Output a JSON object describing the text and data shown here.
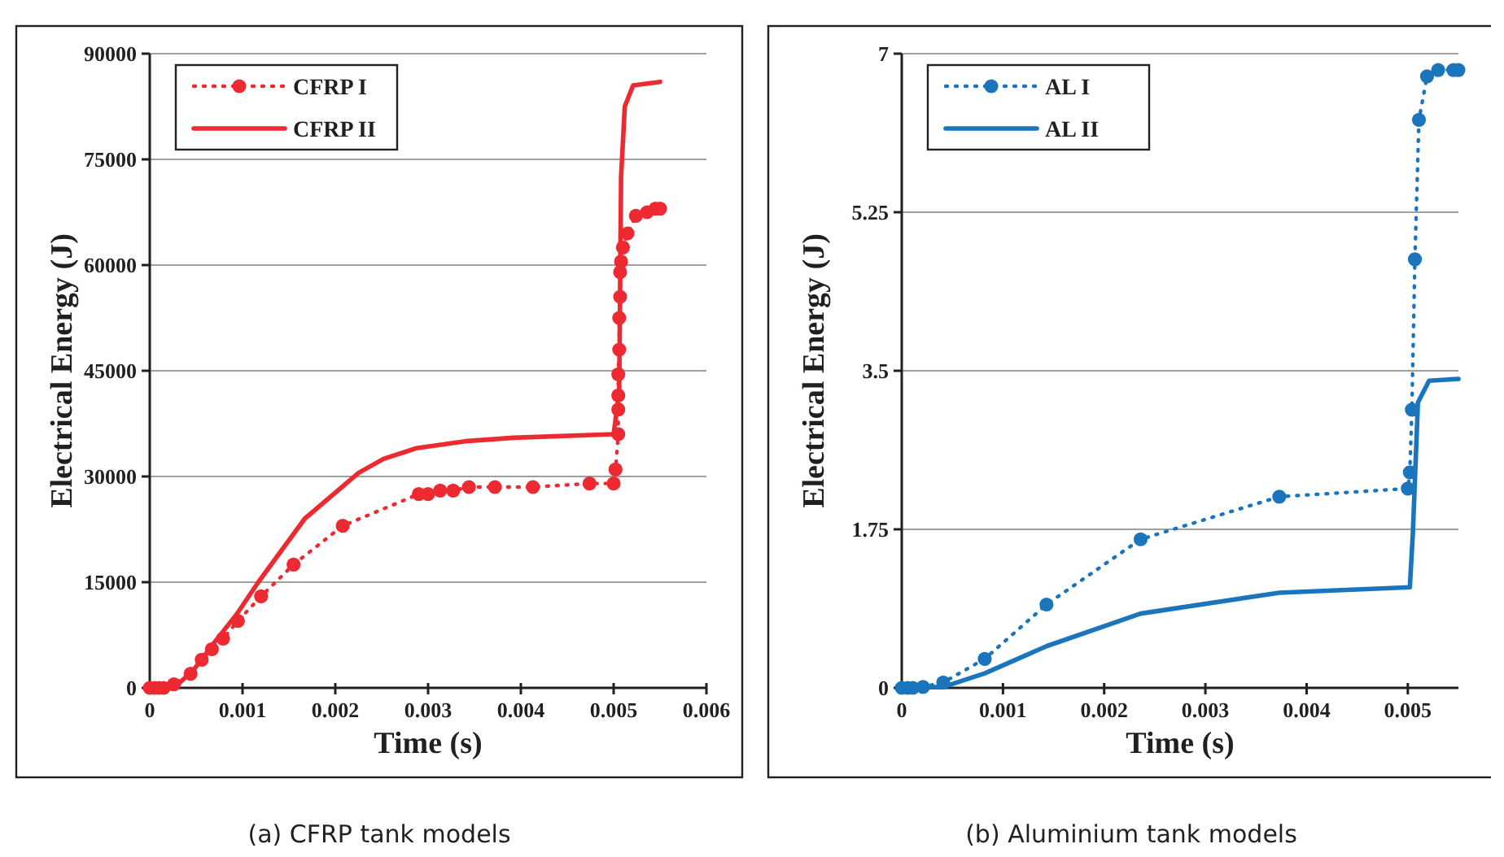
{
  "chart_data": [
    {
      "type": "line",
      "xlabel": "Time (s)",
      "ylabel": "Electrical Energy (J)",
      "xlim": [
        0,
        0.006
      ],
      "xticks": [
        0,
        0.001,
        0.002,
        0.003,
        0.004,
        0.005,
        0.006
      ],
      "ylim": [
        0,
        90000
      ],
      "yticks": [
        0,
        15000,
        30000,
        45000,
        60000,
        75000,
        90000
      ],
      "grid": "y",
      "legend": "top left",
      "annotations": [
        "(a) CFRP tank models"
      ],
      "series": [
        {
          "name": "CFRP I",
          "color": "#ed2a32",
          "marker": "circle",
          "line_style": "dotted",
          "x": [
            0,
            5e-05,
            0.0001,
            0.00015,
            0.00026,
            0.00044,
            0.00056,
            0.00067,
            0.00079,
            0.00095,
            0.0012,
            0.00155,
            0.00208,
            0.0029,
            0.003,
            0.00313,
            0.00327,
            0.00344,
            0.00372,
            0.00413,
            0.00474,
            0.005,
            0.00502,
            0.00505,
            0.00505,
            0.00505,
            0.00505,
            0.00506,
            0.00506,
            0.00507,
            0.00507,
            0.00508,
            0.0051,
            0.00515,
            0.00524,
            0.00536,
            0.00545,
            0.0055
          ],
          "values": [
            0,
            0,
            0,
            0,
            500,
            2000,
            4000,
            5500,
            7000,
            9500,
            13000,
            17500,
            23000,
            27500,
            27500,
            28000,
            28000,
            28500,
            28500,
            28500,
            29000,
            29000,
            31000,
            36000,
            39500,
            41500,
            44500,
            48000,
            52500,
            55500,
            59000,
            60500,
            62500,
            64500,
            67000,
            67500,
            68000,
            68000
          ]
        },
        {
          "name": "CFRP II",
          "color": "#ed2a32",
          "marker": "none",
          "line_style": "solid",
          "x": [
            0,
            0.00026,
            0.00047,
            0.0007,
            0.00094,
            0.00117,
            0.00167,
            0.00225,
            0.00252,
            0.00287,
            0.0034,
            0.00392,
            0.005,
            0.00506,
            0.00508,
            0.00512,
            0.00521,
            0.0055
          ],
          "values": [
            0,
            0,
            2500,
            6500,
            10500,
            15000,
            24000,
            30500,
            32500,
            34000,
            35000,
            35500,
            36000,
            42000,
            72500,
            82500,
            85500,
            86000
          ]
        }
      ]
    },
    {
      "type": "line",
      "xlabel": "Time (s)",
      "ylabel": "Electrical Energy (J)",
      "xlim": [
        0,
        0.0055
      ],
      "xticks": [
        0,
        0.001,
        0.002,
        0.003,
        0.004,
        0.005
      ],
      "ylim": [
        0,
        7
      ],
      "yticks": [
        0,
        1.75,
        3.5,
        5.25,
        7
      ],
      "grid": "y",
      "legend": "top left",
      "annotations": [
        "(b) Aluminium tank models"
      ],
      "series": [
        {
          "name": "AL I",
          "color": "#1a75bc",
          "marker": "circle",
          "line_style": "dotted",
          "x": [
            0,
            6e-05,
            0.00011,
            0.00021,
            0.00041,
            0.00082,
            0.00143,
            0.00236,
            0.00373,
            0.005,
            0.00502,
            0.00504,
            0.00507,
            0.00511,
            0.00519,
            0.0053,
            0.00545,
            0.0055
          ],
          "values": [
            0,
            0,
            0,
            0.01,
            0.06,
            0.32,
            0.92,
            1.64,
            2.11,
            2.2,
            2.38,
            3.07,
            4.73,
            6.27,
            6.75,
            6.82,
            6.82,
            6.82
          ]
        },
        {
          "name": "AL II",
          "color": "#1a75bc",
          "marker": "none",
          "line_style": "solid",
          "x": [
            0,
            0.00041,
            0.00082,
            0.00143,
            0.00236,
            0.00373,
            0.00502,
            0.00505,
            0.0051,
            0.00521,
            0.0055
          ],
          "values": [
            0,
            0.01,
            0.16,
            0.46,
            0.82,
            1.05,
            1.11,
            1.71,
            3.15,
            3.39,
            3.41
          ]
        }
      ]
    }
  ]
}
